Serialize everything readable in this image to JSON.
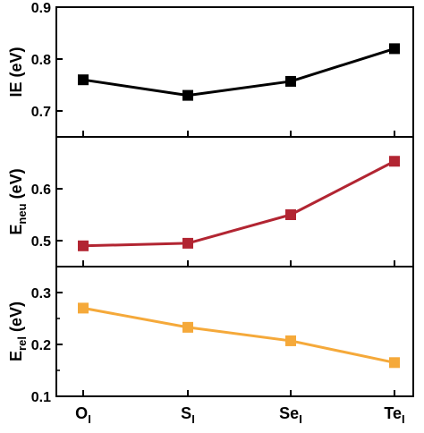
{
  "chart_data": {
    "type": "line",
    "categories": [
      {
        "base": "O",
        "sub": "I"
      },
      {
        "base": "S",
        "sub": "I"
      },
      {
        "base": "Se",
        "sub": "I"
      },
      {
        "base": "Te",
        "sub": "I"
      }
    ],
    "panels": [
      {
        "ylabel": {
          "base": "IE",
          "sub": "",
          "unit": " (eV)"
        },
        "ylim": [
          0.65,
          0.9
        ],
        "ticks": [
          "0.7",
          "0.8",
          "0.9"
        ],
        "color": "#000000",
        "values": [
          0.76,
          0.73,
          0.757,
          0.82
        ]
      },
      {
        "ylabel": {
          "base": "E",
          "sub": "neu",
          "unit": " (eV)"
        },
        "ylim": [
          0.45,
          0.7
        ],
        "ticks": [
          "0.5",
          "0.6"
        ],
        "color": "#b22532",
        "values": [
          0.49,
          0.495,
          0.55,
          0.653
        ]
      },
      {
        "ylabel": {
          "base": "E",
          "sub": "rel",
          "unit": " (eV)"
        },
        "ylim": [
          0.1,
          0.35
        ],
        "ticks": [
          "0.1",
          "0.2",
          "0.3"
        ],
        "color": "#f5a93a",
        "values": [
          0.27,
          0.233,
          0.207,
          0.165
        ]
      }
    ]
  }
}
